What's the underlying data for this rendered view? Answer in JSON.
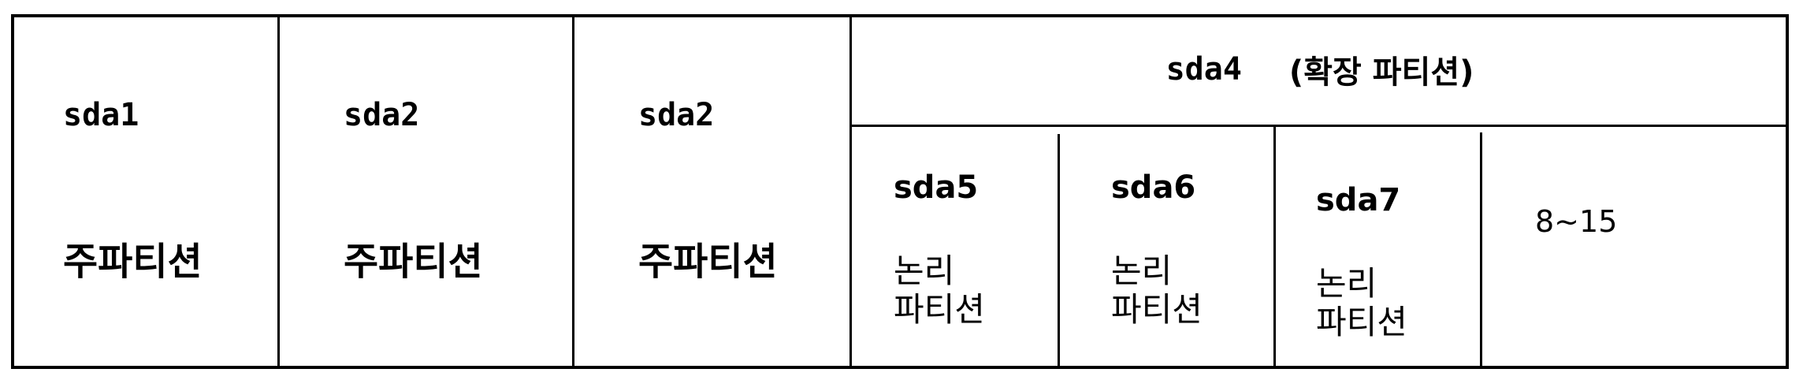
{
  "primary_partitions": [
    {
      "name": "sda1",
      "type": "주파티션"
    },
    {
      "name": "sda2",
      "type": "주파티션"
    },
    {
      "name": "sda2",
      "type": "주파티션"
    }
  ],
  "extended": {
    "name": "sda4",
    "label": "(확장 파티션)",
    "logical_partitions": [
      {
        "name": "sda5",
        "type_line1": "논리",
        "type_line2": "파티션"
      },
      {
        "name": "sda6",
        "type_line1": "논리",
        "type_line2": "파티션"
      },
      {
        "name": "sda7",
        "type_line1": "논리",
        "type_line2": "파티션"
      }
    ],
    "range": "8~15"
  }
}
